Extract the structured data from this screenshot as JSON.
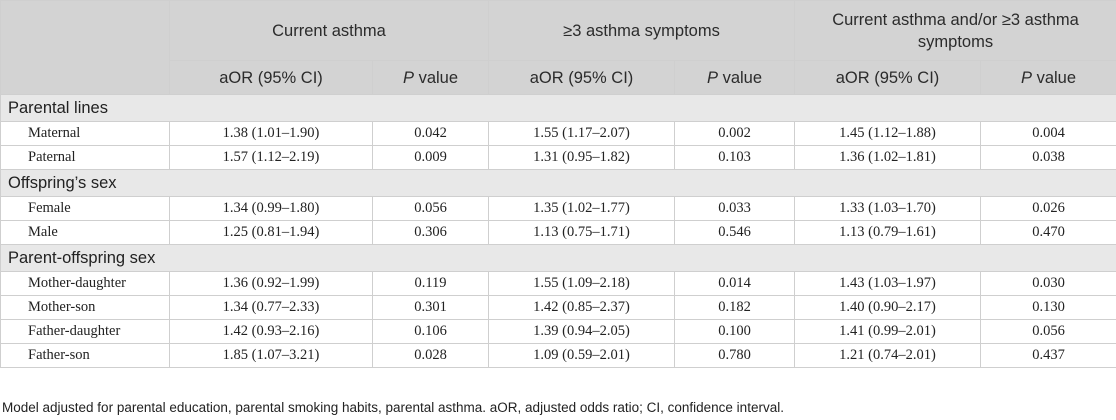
{
  "header": {
    "groups": [
      {
        "label": "Current asthma"
      },
      {
        "label": "≥3 asthma symptoms"
      },
      {
        "label": "Current asthma and/or ≥3 asthma symptoms"
      }
    ],
    "subcols": [
      {
        "aor": "aOR (95% CI)",
        "p_italic": "P",
        "p_rest": " value"
      },
      {
        "aor": "aOR (95% CI)",
        "p_italic": "P",
        "p_rest": " value"
      },
      {
        "aor": "aOR (95% CI)",
        "p_italic": "P",
        "p_rest": " value"
      }
    ]
  },
  "sections": [
    {
      "title": "Parental lines",
      "rows": [
        {
          "label": "Maternal",
          "cells": [
            "1.38 (1.01–1.90)",
            "0.042",
            "1.55 (1.17–2.07)",
            "0.002",
            "1.45 (1.12–1.88)",
            "0.004"
          ]
        },
        {
          "label": "Paternal",
          "cells": [
            "1.57 (1.12–2.19)",
            "0.009",
            "1.31 (0.95–1.82)",
            "0.103",
            "1.36 (1.02–1.81)",
            "0.038"
          ]
        }
      ]
    },
    {
      "title": "Offspring’s sex",
      "rows": [
        {
          "label": "Female",
          "cells": [
            "1.34 (0.99–1.80)",
            "0.056",
            "1.35 (1.02–1.77)",
            "0.033",
            "1.33 (1.03–1.70)",
            "0.026"
          ]
        },
        {
          "label": "Male",
          "cells": [
            "1.25 (0.81–1.94)",
            "0.306",
            "1.13 (0.75–1.71)",
            "0.546",
            "1.13 (0.79–1.61)",
            "0.470"
          ]
        }
      ]
    },
    {
      "title": "Parent-offspring sex",
      "rows": [
        {
          "label": "Mother-daughter",
          "cells": [
            "1.36 (0.92–1.99)",
            "0.119",
            "1.55 (1.09–2.18)",
            "0.014",
            "1.43 (1.03–1.97)",
            "0.030"
          ]
        },
        {
          "label": "Mother-son",
          "cells": [
            "1.34 (0.77–2.33)",
            "0.301",
            "1.42 (0.85–2.37)",
            "0.182",
            "1.40 (0.90–2.17)",
            "0.130"
          ]
        },
        {
          "label": "Father-daughter",
          "cells": [
            "1.42 (0.93–2.16)",
            "0.106",
            "1.39 (0.94–2.05)",
            "0.100",
            "1.41 (0.99–2.01)",
            "0.056"
          ]
        },
        {
          "label": "Father-son",
          "cells": [
            "1.85 (1.07–3.21)",
            "0.028",
            "1.09 (0.59–2.01)",
            "0.780",
            "1.21 (0.74–2.01)",
            "0.437"
          ]
        }
      ]
    }
  ],
  "footnote": "Model adjusted for parental education, parental smoking habits, parental asthma. aOR, adjusted odds ratio; CI, confidence interval."
}
